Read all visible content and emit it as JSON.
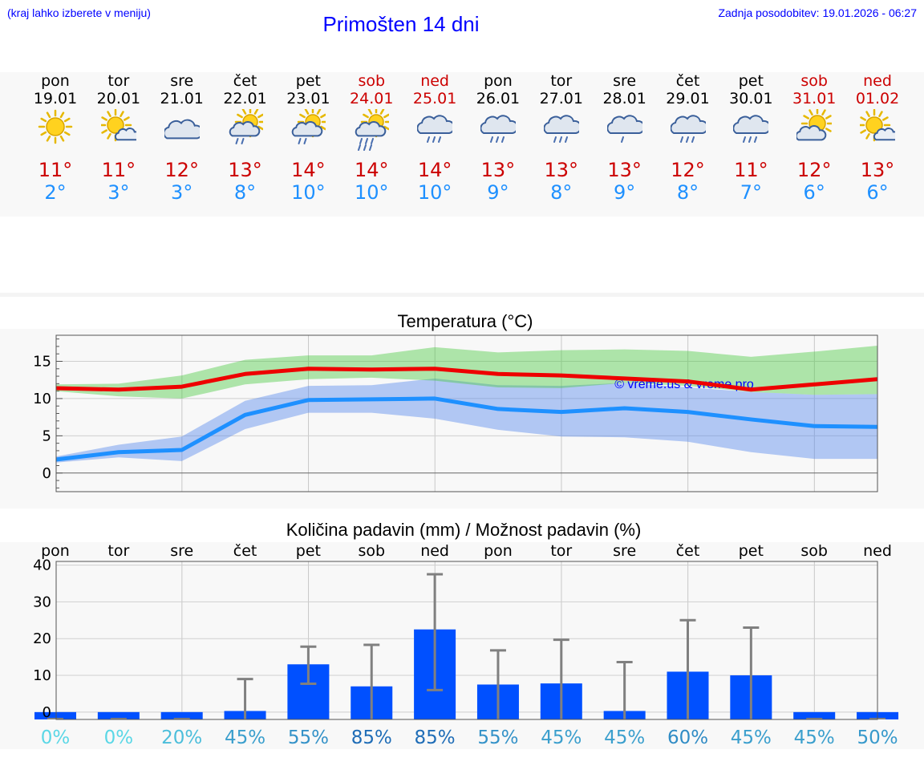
{
  "header": {
    "left": "(kraj lahko izberete v meniju)",
    "title": "Primošten 14 dni",
    "right": "Zadnja posodobitev: 19.01.2026 - 06:27"
  },
  "colors": {
    "hi": "#cc0000",
    "lo": "#1e90ff",
    "weekend": "#cc0000",
    "bar": "#0050ff",
    "header": "#0000ff"
  },
  "days": [
    {
      "wd": "pon",
      "date": "19.01",
      "hi": "11°",
      "lo": "2°",
      "icon": "sun-icon",
      "weekend": false
    },
    {
      "wd": "tor",
      "date": "20.01",
      "hi": "11°",
      "lo": "3°",
      "icon": "sun-small-cloud-icon",
      "weekend": false
    },
    {
      "wd": "sre",
      "date": "21.01",
      "hi": "12°",
      "lo": "3°",
      "icon": "cloudy-icon",
      "weekend": false
    },
    {
      "wd": "čet",
      "date": "22.01",
      "hi": "13°",
      "lo": "8°",
      "icon": "sun-cloud-light-rain-icon",
      "weekend": false
    },
    {
      "wd": "pet",
      "date": "23.01",
      "hi": "14°",
      "lo": "10°",
      "icon": "sun-cloud-light-rain-icon",
      "weekend": false
    },
    {
      "wd": "sob",
      "date": "24.01",
      "hi": "14°",
      "lo": "10°",
      "icon": "sun-cloud-rain-icon",
      "weekend": true
    },
    {
      "wd": "ned",
      "date": "25.01",
      "hi": "14°",
      "lo": "10°",
      "icon": "cloud-rain-icon",
      "weekend": true
    },
    {
      "wd": "pon",
      "date": "26.01",
      "hi": "13°",
      "lo": "9°",
      "icon": "cloud-rain-icon",
      "weekend": false
    },
    {
      "wd": "tor",
      "date": "27.01",
      "hi": "13°",
      "lo": "8°",
      "icon": "cloud-rain-icon",
      "weekend": false
    },
    {
      "wd": "sre",
      "date": "28.01",
      "hi": "13°",
      "lo": "9°",
      "icon": "cloud-light-rain-icon",
      "weekend": false
    },
    {
      "wd": "čet",
      "date": "29.01",
      "hi": "12°",
      "lo": "8°",
      "icon": "cloud-rain-icon",
      "weekend": false
    },
    {
      "wd": "pet",
      "date": "30.01",
      "hi": "11°",
      "lo": "7°",
      "icon": "cloud-rain-icon",
      "weekend": false
    },
    {
      "wd": "sob",
      "date": "31.01",
      "hi": "12°",
      "lo": "6°",
      "icon": "sun-big-cloud-icon",
      "weekend": true
    },
    {
      "wd": "ned",
      "date": "01.02",
      "hi": "13°",
      "lo": "6°",
      "icon": "sun-small-cloud-icon",
      "weekend": true
    }
  ],
  "chart_data": [
    {
      "type": "line",
      "title": "Temperatura (°C)",
      "ylim": [
        -2.5,
        18.5
      ],
      "yticks": [
        0,
        5,
        10,
        15
      ],
      "watermark": "© vreme.us & vreme.pro",
      "series": [
        {
          "name": "max",
          "color": "#ee0000",
          "values": [
            11.4,
            11.2,
            11.6,
            13.3,
            14.0,
            13.9,
            14.0,
            13.3,
            13.1,
            12.7,
            12.3,
            11.2,
            11.9,
            12.6
          ]
        },
        {
          "name": "min",
          "color": "#1e90ff",
          "values": [
            1.8,
            2.8,
            3.1,
            7.8,
            9.8,
            9.9,
            10.0,
            8.6,
            8.2,
            8.7,
            8.2,
            7.2,
            6.3,
            6.2
          ]
        }
      ],
      "max_band": {
        "upper": [
          11.9,
          12.0,
          13.1,
          15.2,
          15.8,
          15.8,
          16.9,
          16.2,
          16.5,
          16.6,
          16.4,
          15.6,
          16.3,
          17.1
        ],
        "lower": [
          11.0,
          10.3,
          10.0,
          11.9,
          12.6,
          12.8,
          12.4,
          11.5,
          11.4,
          12.1,
          11.7,
          10.9,
          10.5,
          10.6
        ]
      },
      "min_band": {
        "upper": [
          2.2,
          3.8,
          4.9,
          9.7,
          11.7,
          11.8,
          12.7,
          11.8,
          11.7,
          12.1,
          11.5,
          10.9,
          10.5,
          10.6
        ],
        "lower": [
          1.4,
          2.1,
          1.6,
          5.9,
          8.1,
          8.1,
          7.3,
          5.8,
          4.9,
          4.8,
          4.2,
          2.8,
          1.9,
          1.9
        ]
      }
    },
    {
      "type": "bar",
      "title": "Količina padavin (mm) / Možnost padavin (%)",
      "categories": [
        "pon",
        "tor",
        "sre",
        "čet",
        "pet",
        "sob",
        "ned",
        "pon",
        "tor",
        "sre",
        "čet",
        "pet",
        "sob",
        "ned"
      ],
      "ylim": [
        -2,
        41
      ],
      "yticks": [
        0,
        10,
        20,
        30,
        40
      ],
      "values": [
        0,
        0,
        0,
        0.3,
        13,
        7,
        22.5,
        7.5,
        7.8,
        0.3,
        11,
        10,
        0,
        0
      ],
      "error_low": [
        0,
        0,
        0,
        0,
        7.7,
        0,
        6,
        0,
        0,
        0,
        0,
        0,
        0,
        0
      ],
      "error_high": [
        0,
        0,
        0,
        9,
        17.8,
        18.3,
        37.5,
        16.8,
        19.7,
        13.6,
        25,
        23,
        0,
        0
      ],
      "probability": [
        "0%",
        "0%",
        "20%",
        "45%",
        "55%",
        "85%",
        "85%",
        "55%",
        "45%",
        "45%",
        "60%",
        "45%",
        "45%",
        "50%"
      ],
      "probability_values": [
        0,
        0,
        20,
        45,
        55,
        85,
        85,
        55,
        45,
        45,
        60,
        45,
        45,
        50
      ]
    }
  ]
}
